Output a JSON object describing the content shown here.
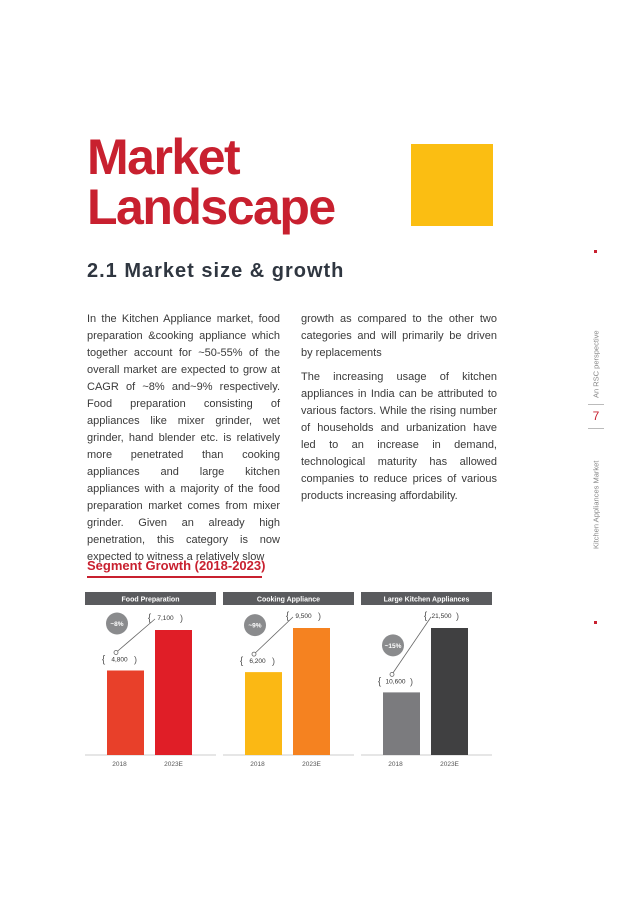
{
  "title": {
    "line1": "Market",
    "line2": "Landscape"
  },
  "section_heading": "2.1  Market size & growth",
  "column1": {
    "paragraph": "In the Kitchen Appliance market, food preparation &cooking appliance which together account for ~50-55% of the overall market are expected to grow at CAGR of ~8% and~9% respectively. Food preparation consisting of appliances like mixer grinder, wet grinder, hand blender etc. is relatively more penetrated than cooking appliances and large kitchen appliances with a majority of the food preparation market comes from mixer grinder. Given an already high penetration, this category is now expected to witness a relatively slow"
  },
  "column2": {
    "paragraph1": "growth as compared to the other two categories and will primarily be driven by replacements",
    "paragraph2": "The increasing usage of kitchen appliances in India can be attributed to various factors. While the rising number of households and urbanization have led to an increase in demand, technological maturity has allowed companies to reduce prices of various products increasing affordability."
  },
  "segment_title": "Segment Growth (2018-2023)",
  "sidebar": {
    "perspective": "An RSC perspective",
    "page_number": "7",
    "report": "Kitchen Appliances Market"
  },
  "chart_data": {
    "type": "bar",
    "panels": [
      {
        "title": "Food Preparation",
        "categories": [
          "2018",
          "2023E"
        ],
        "values": [
          4800,
          7100
        ],
        "labels": [
          "4,800",
          "7,100"
        ],
        "cagr": "~8%",
        "colors": [
          "#e8402a",
          "#e01e27"
        ]
      },
      {
        "title": "Cooking Appliance",
        "categories": [
          "2018",
          "2023E"
        ],
        "values": [
          6200,
          9500
        ],
        "labels": [
          "6,200",
          "9,500"
        ],
        "cagr": "~9%",
        "colors": [
          "#fbb814",
          "#f58220"
        ]
      },
      {
        "title": "Large Kitchen Appliances",
        "categories": [
          "2018",
          "2023E"
        ],
        "values": [
          10600,
          21500
        ],
        "labels": [
          "10,600",
          "21,500"
        ],
        "cagr": "~15%",
        "colors": [
          "#7b7b7e",
          "#404041"
        ]
      }
    ],
    "header_color": "#5a5b5e",
    "badge_color": "#8a8b8d"
  }
}
